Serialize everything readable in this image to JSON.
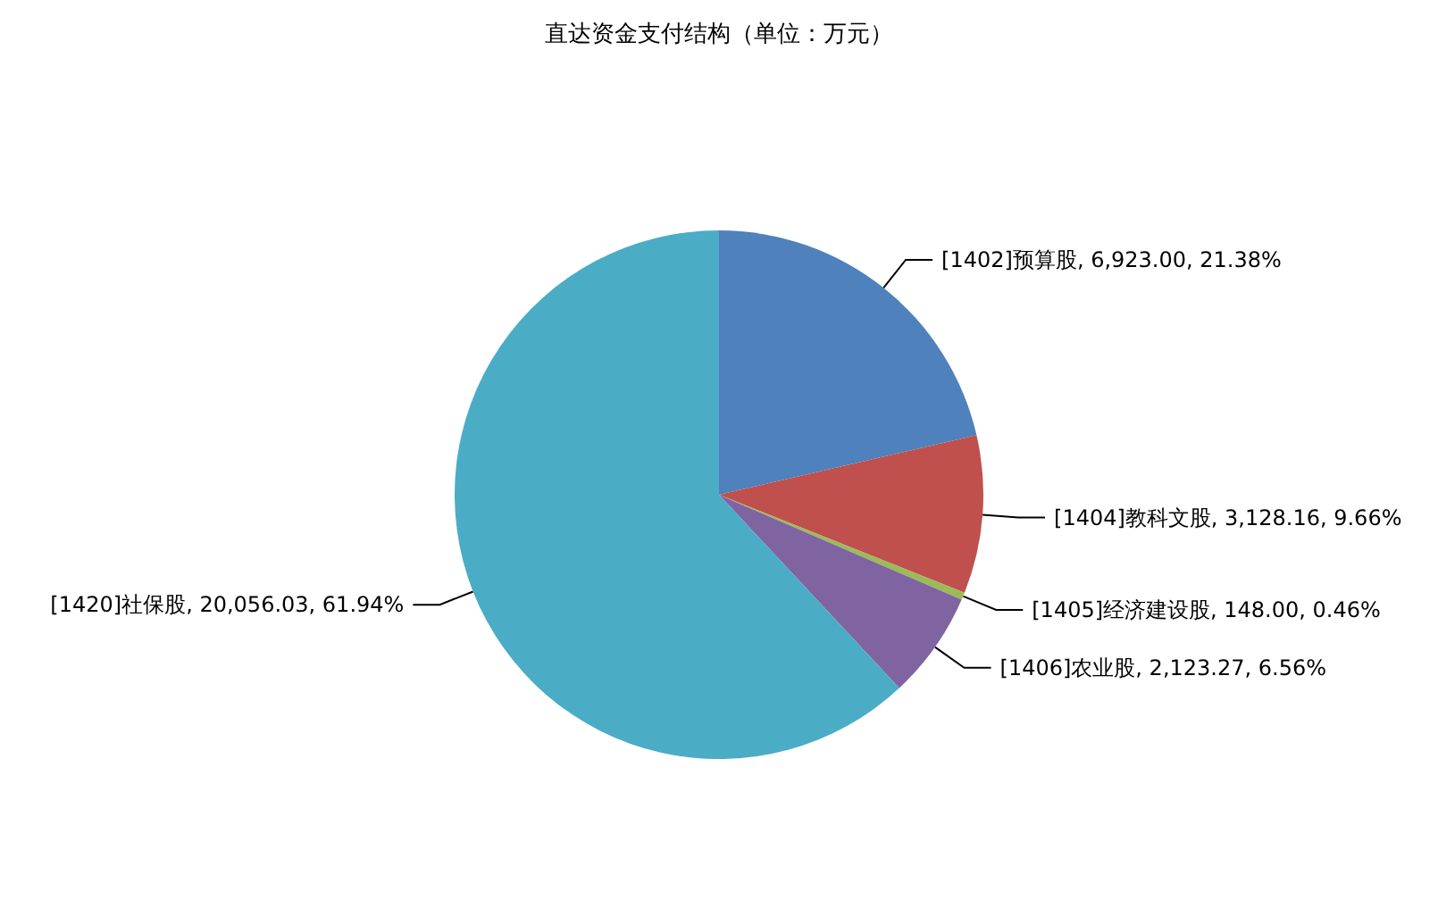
{
  "chart_data": {
    "type": "pie",
    "title": "直达资金支付结构（单位：万元）",
    "categories": [
      "[1402]预算股",
      "[1404]教科文股",
      "[1405]经济建设股",
      "[1406]农业股",
      "[1420]社保股"
    ],
    "values": [
      6923.0,
      3128.16,
      148.0,
      2123.27,
      20056.03
    ],
    "value_labels": [
      "6,923.00, 21.38%",
      "3,128.16, 9.66%",
      "148.00, 0.46%",
      "2,123.27, 6.56%",
      "20,056.03, 61.94%"
    ],
    "colors": [
      "#4f81bd",
      "#c0504d",
      "#9bbb59",
      "#8064a2",
      "#4bacc6"
    ],
    "legend": false
  }
}
